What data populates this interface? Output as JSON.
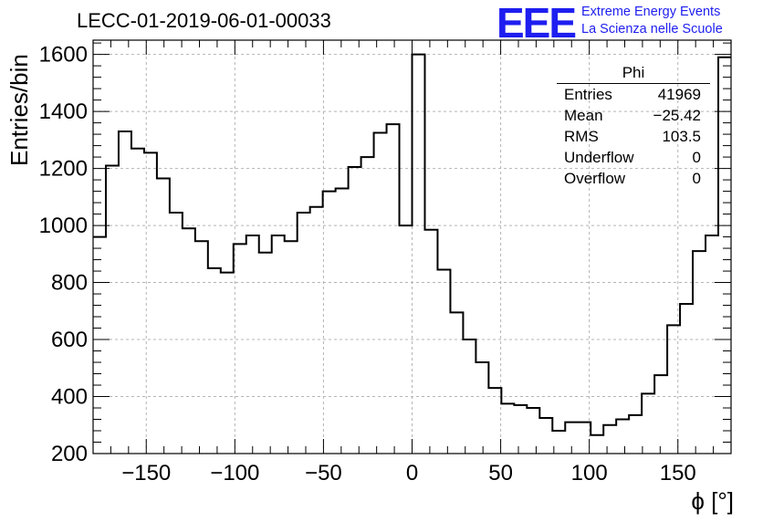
{
  "title": "LECC-01-2019-06-01-00033",
  "logo": {
    "mark": "EEE",
    "line1": "Extreme Energy Events",
    "line2": "La Scienza nelle Scuole"
  },
  "stats_box": {
    "name": "Phi",
    "rows": [
      {
        "label": "Entries",
        "value": "41969"
      },
      {
        "label": "Mean",
        "value": "−25.42"
      },
      {
        "label": "RMS",
        "value": "103.5"
      },
      {
        "label": "Underflow",
        "value": "0"
      },
      {
        "label": "Overflow",
        "value": "0"
      }
    ]
  },
  "colors": {
    "line": "#000000",
    "grid": "#b4b4b4",
    "logo": "#1e1ef0"
  },
  "chart_data": {
    "type": "histogram",
    "xlabel": "ϕ [°]",
    "ylabel": "Entries/bin",
    "xlim": [
      -180,
      180
    ],
    "ylim": [
      200,
      1650
    ],
    "grid": true,
    "xticks": [
      -150,
      -100,
      -50,
      0,
      50,
      100,
      150
    ],
    "yticks": [
      200,
      400,
      600,
      800,
      1000,
      1200,
      1400,
      1600
    ],
    "bin_width": 7.2,
    "values": [
      960,
      1210,
      1330,
      1270,
      1255,
      1165,
      1045,
      990,
      945,
      850,
      835,
      935,
      965,
      905,
      965,
      945,
      1045,
      1065,
      1120,
      1130,
      1205,
      1240,
      1325,
      1355,
      1000,
      1600,
      985,
      845,
      695,
      600,
      520,
      430,
      375,
      370,
      360,
      325,
      280,
      310,
      310,
      265,
      300,
      320,
      335,
      410,
      475,
      650,
      725,
      910,
      965,
      1590
    ]
  }
}
